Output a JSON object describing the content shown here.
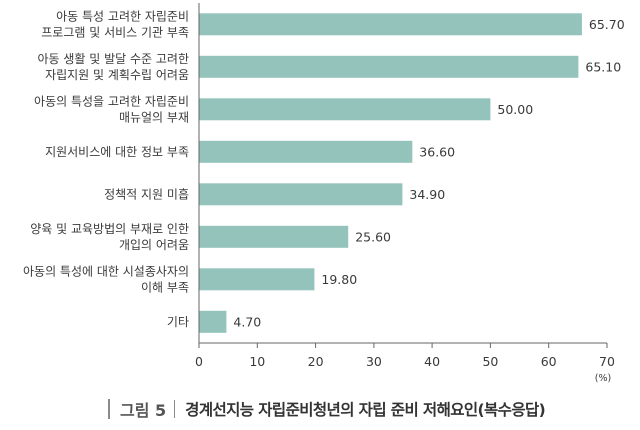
{
  "caption": {
    "figure_label": "그림 5",
    "title": "경계선지능 자립준비청년의 자립 준비 저해요인(복수응답)"
  },
  "chart_data": {
    "type": "bar",
    "orientation": "horizontal",
    "categories": [
      [
        "아동 특성 고려한 자립준비",
        "프로그램 및 서비스 기관 부족"
      ],
      [
        "아동 생활 및 발달 수준 고려한",
        "자립지원 및 계획수립 어려움"
      ],
      [
        "아동의 특성을 고려한 자립준비",
        "매뉴얼의 부재"
      ],
      [
        "지원서비스에 대한 정보 부족"
      ],
      [
        "정책적 지원 미흡"
      ],
      [
        "양육 및 교육방법의 부재로 인한",
        "개입의 어려움"
      ],
      [
        "아동의 특성에 대한 시설종사자의",
        "이해 부족"
      ],
      [
        "기타"
      ]
    ],
    "values": [
      65.7,
      65.1,
      50.0,
      36.6,
      34.9,
      25.6,
      19.8,
      4.7
    ],
    "value_labels": [
      "65.70",
      "65.10",
      "50.00",
      "36.60",
      "34.90",
      "25.60",
      "19.80",
      "4.70"
    ],
    "xlim": [
      0,
      70
    ],
    "xticks": [
      "0",
      "10",
      "20",
      "30",
      "40",
      "50",
      "60",
      "70"
    ],
    "x_unit": "(%)",
    "bar_color": "#93c3bb",
    "axis_color": "#666666",
    "grid": false
  }
}
